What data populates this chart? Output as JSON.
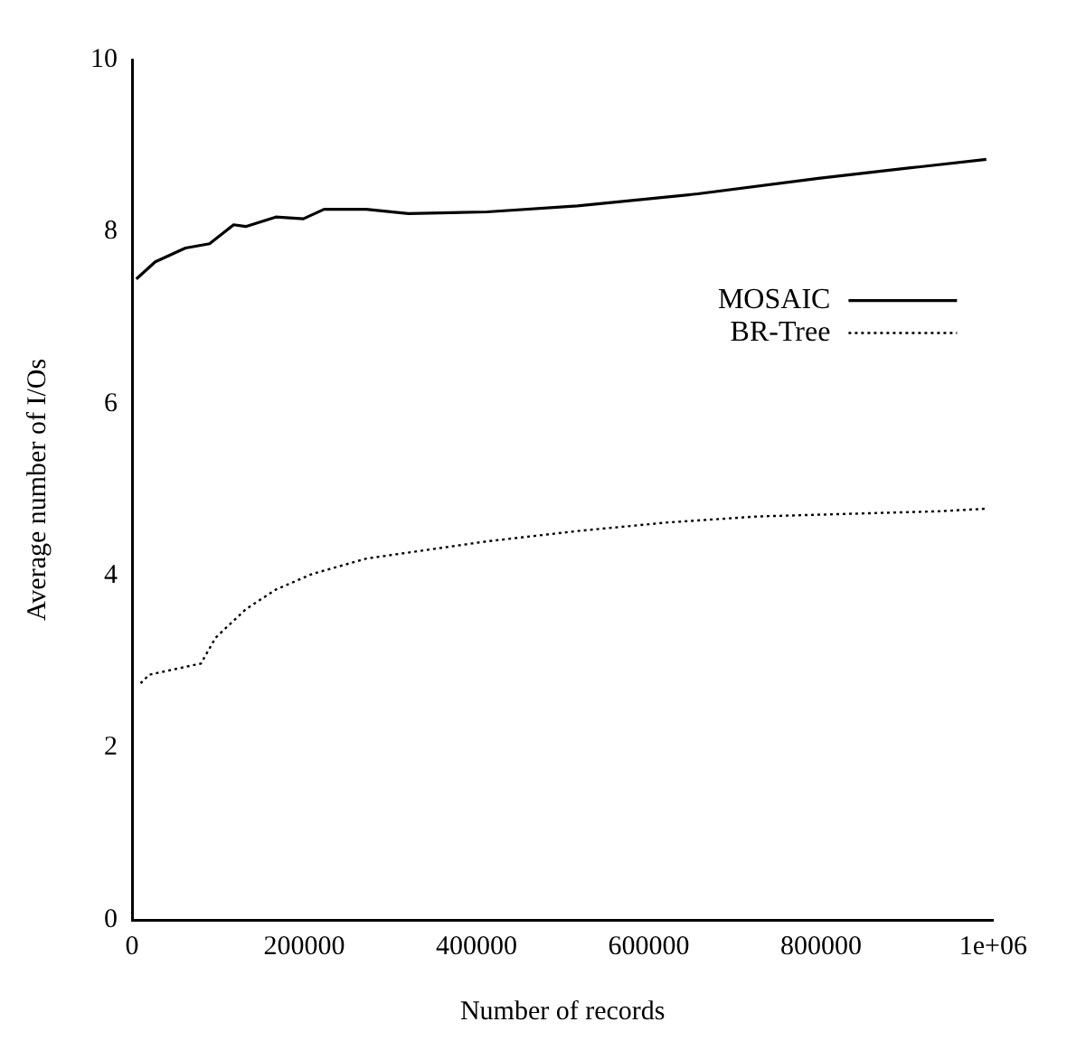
{
  "chart_data": {
    "type": "line",
    "xlabel": "Number of records",
    "ylabel": "Average number of I/Os",
    "xlim": [
      0,
      1000000
    ],
    "ylim": [
      0,
      10
    ],
    "xticks": [
      0,
      200000,
      400000,
      600000,
      800000,
      {
        "value": 1000000,
        "label": "1e+06"
      }
    ],
    "yticks": [
      0,
      2,
      4,
      6,
      8,
      10
    ],
    "grid": false,
    "legend": "right",
    "marker": "none",
    "series": [
      {
        "name": "MOSAIC",
        "color": "#000000",
        "line_style": "solid",
        "x": [
          5000,
          27000,
          62000,
          90000,
          118000,
          132000,
          167000,
          199000,
          223000,
          272000,
          321000,
          412000,
          517000,
          657000,
          797000,
          902000,
          992000
        ],
        "values": [
          7.45,
          7.65,
          7.81,
          7.86,
          8.08,
          8.06,
          8.17,
          8.15,
          8.26,
          8.26,
          8.21,
          8.23,
          8.3,
          8.44,
          8.62,
          8.74,
          8.84
        ]
      },
      {
        "name": "BR-Tree",
        "color": "#000000",
        "line_style": "dotted",
        "x": [
          10000,
          20000,
          80000,
          97000,
          132000,
          167000,
          209000,
          272000,
          342000,
          412000,
          517000,
          622000,
          727000,
          832000,
          937000,
          992000
        ],
        "values": [
          2.75,
          2.85,
          2.98,
          3.28,
          3.61,
          3.84,
          4.02,
          4.2,
          4.3,
          4.4,
          4.52,
          4.62,
          4.69,
          4.72,
          4.75,
          4.78
        ]
      }
    ]
  }
}
